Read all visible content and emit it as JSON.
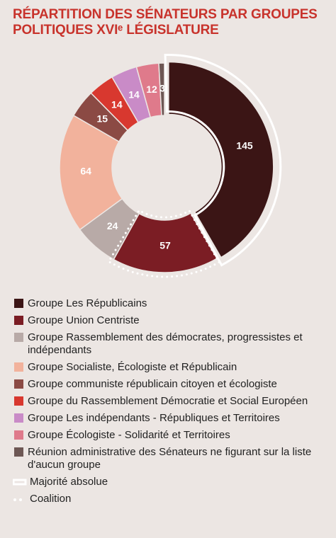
{
  "chart_data": {
    "type": "donut",
    "title": [
      "RÉPARTITION DES SÉNATEURS PAR GROUPES",
      "POLITIQUES XVIᵉ LÉGISLATURE"
    ],
    "categories": [
      "Groupe Les Républicains",
      "Groupe Union Centriste",
      "Groupe Rassemblement des démocrates, progressistes et indépendants",
      "Groupe Socialiste, Écologiste et Républicain",
      "Groupe communiste républicain citoyen et écologiste",
      "Groupe du Rassemblement Démocratie et Social Européen",
      "Groupe Les indépendants - Républiques et Territoires",
      "Groupe Écologiste - Solidarité et Territoires",
      "Réunion administrative des Sénateurs ne figurant sur la liste d'aucun groupe"
    ],
    "values": [
      145,
      57,
      24,
      64,
      15,
      14,
      14,
      12,
      3
    ],
    "colors": [
      "#3b1515",
      "#7b1d24",
      "#b8aaa7",
      "#f2b29c",
      "#8b4a44",
      "#d8382f",
      "#c98bc7",
      "#df7a8b",
      "#6d5754"
    ],
    "annotations": [
      "Majorité absolue",
      "Coalition"
    ]
  }
}
